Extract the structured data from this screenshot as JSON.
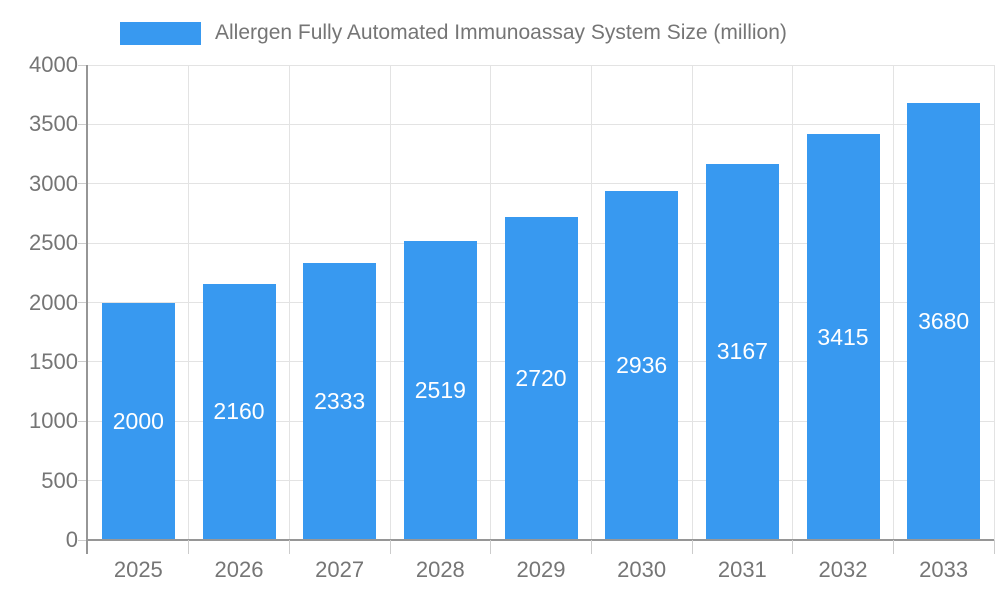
{
  "legend": {
    "label": "Allergen Fully Automated Immunoassay System Size (million)"
  },
  "colors": {
    "bar": "#3899F0",
    "axis_line": "#969696",
    "grid_line": "#e3e3e3",
    "tick_line": "#cccccc",
    "axis_text": "#757575",
    "legend_text": "#757575",
    "bar_label_text": "#ffffff",
    "background": "#ffffff"
  },
  "chart_data": {
    "type": "bar",
    "title": "Allergen Fully Automated Immunoassay System Size (million)",
    "categories": [
      "2025",
      "2026",
      "2027",
      "2028",
      "2029",
      "2030",
      "2031",
      "2032",
      "2033"
    ],
    "values": [
      2000,
      2160,
      2333,
      2519,
      2720,
      2936,
      3167,
      3415,
      3680
    ],
    "xlabel": "",
    "ylabel": "",
    "ylim": [
      0,
      4000
    ],
    "ytick_step": 500,
    "yticks": [
      0,
      500,
      1000,
      1500,
      2000,
      2500,
      3000,
      3500,
      4000
    ],
    "grid": true,
    "grid_horizontal": true,
    "grid_vertical": true,
    "legend_position": "top-left",
    "value_labels": "inside-center"
  }
}
